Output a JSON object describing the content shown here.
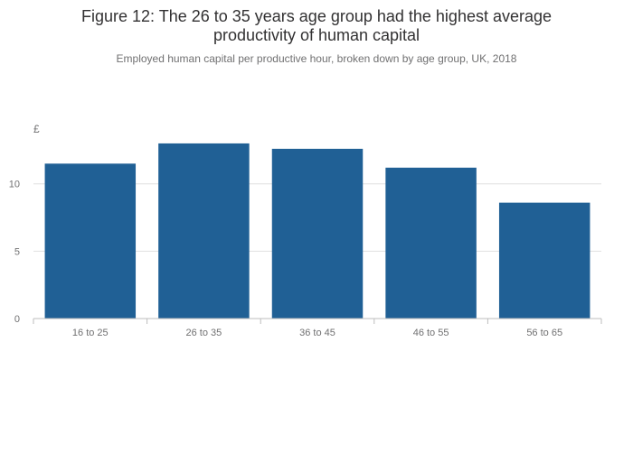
{
  "chart_data": {
    "type": "bar",
    "title_line1": "Figure 12: The 26 to 35 years age group had the highest average",
    "title_line2": "productivity of human capital",
    "subtitle": "Employed human capital per productive hour, broken down by age group, UK, 2018",
    "ylabel": "£",
    "xlabel": "",
    "categories": [
      "16 to 25",
      "26 to 35",
      "36 to 45",
      "46 to 55",
      "56 to 65"
    ],
    "values": [
      11.5,
      13.0,
      12.6,
      11.2,
      8.6
    ],
    "ylim": [
      0,
      14
    ],
    "yticks": [
      0,
      5,
      10
    ],
    "grid": true,
    "legend": "none",
    "bar_color": "#206095",
    "grid_color": "#e0e0e0",
    "axis_color": "#bdbdbd"
  }
}
